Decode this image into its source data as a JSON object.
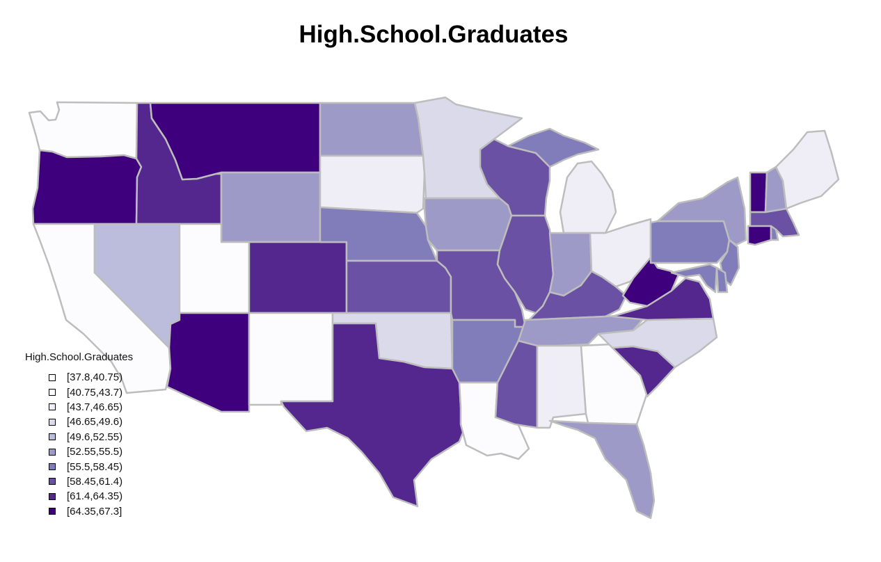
{
  "title": "High.School.Graduates",
  "legend": {
    "title": "High.School.Graduates",
    "bins": [
      {
        "label": "[37.8,40.75)",
        "color": "#fcfbfd"
      },
      {
        "label": "[40.75,43.7)",
        "color": "#fcfbfd"
      },
      {
        "label": "[43.7,46.65)",
        "color": "#efedf5"
      },
      {
        "label": "[46.65,49.6)",
        "color": "#dadaeb"
      },
      {
        "label": "[49.6,52.55)",
        "color": "#bcbddc"
      },
      {
        "label": "[52.55,55.5)",
        "color": "#9e9ac8"
      },
      {
        "label": "[55.5,58.45)",
        "color": "#807dba"
      },
      {
        "label": "[58.45,61.4)",
        "color": "#6a51a3"
      },
      {
        "label": "[61.4,64.35)",
        "color": "#54278f"
      },
      {
        "label": "[64.35,67.3]",
        "color": "#3f007d"
      }
    ]
  },
  "states": [
    {
      "name": "WA",
      "color": "#fcfbfd"
    },
    {
      "name": "OR",
      "color": "#3f007d"
    },
    {
      "name": "CA",
      "color": "#fcfbfd"
    },
    {
      "name": "ID",
      "color": "#54278f"
    },
    {
      "name": "NV",
      "color": "#bcbddc"
    },
    {
      "name": "MT",
      "color": "#3f007d"
    },
    {
      "name": "WY",
      "color": "#9e9ac8"
    },
    {
      "name": "UT",
      "color": "#fcfbfd"
    },
    {
      "name": "AZ",
      "color": "#3f007d"
    },
    {
      "name": "CO",
      "color": "#54278f"
    },
    {
      "name": "NM",
      "color": "#fcfbfd"
    },
    {
      "name": "ND",
      "color": "#9e9ac8"
    },
    {
      "name": "SD",
      "color": "#efedf5"
    },
    {
      "name": "NE",
      "color": "#807dba"
    },
    {
      "name": "KS",
      "color": "#6a51a3"
    },
    {
      "name": "OK",
      "color": "#dadaeb"
    },
    {
      "name": "TX",
      "color": "#54278f"
    },
    {
      "name": "MN",
      "color": "#dadaeb"
    },
    {
      "name": "IA",
      "color": "#9e9ac8"
    },
    {
      "name": "MO",
      "color": "#6a51a3"
    },
    {
      "name": "AR",
      "color": "#807dba"
    },
    {
      "name": "LA",
      "color": "#fcfbfd"
    },
    {
      "name": "WI",
      "color": "#6a51a3"
    },
    {
      "name": "MI-UP",
      "color": "#807dba"
    },
    {
      "name": "MI",
      "color": "#efedf5"
    },
    {
      "name": "IL",
      "color": "#6a51a3"
    },
    {
      "name": "IN",
      "color": "#9e9ac8"
    },
    {
      "name": "OH",
      "color": "#efedf5"
    },
    {
      "name": "KY",
      "color": "#6a51a3"
    },
    {
      "name": "TN",
      "color": "#9e9ac8"
    },
    {
      "name": "MS",
      "color": "#6a51a3"
    },
    {
      "name": "AL",
      "color": "#efedf5"
    },
    {
      "name": "GA",
      "color": "#fcfbfd"
    },
    {
      "name": "FL",
      "color": "#9e9ac8"
    },
    {
      "name": "SC",
      "color": "#54278f"
    },
    {
      "name": "NC",
      "color": "#dadaeb"
    },
    {
      "name": "VA",
      "color": "#54278f"
    },
    {
      "name": "WV",
      "color": "#3f007d"
    },
    {
      "name": "PA",
      "color": "#807dba"
    },
    {
      "name": "NY",
      "color": "#9e9ac8"
    },
    {
      "name": "NJ",
      "color": "#807dba"
    },
    {
      "name": "MD",
      "color": "#807dba"
    },
    {
      "name": "DE",
      "color": "#807dba"
    },
    {
      "name": "VT",
      "color": "#3f007d"
    },
    {
      "name": "NH",
      "color": "#9e9ac8"
    },
    {
      "name": "ME",
      "color": "#efedf5"
    },
    {
      "name": "MA",
      "color": "#6a51a3"
    },
    {
      "name": "CT",
      "color": "#3f007d"
    },
    {
      "name": "RI",
      "color": "#807dba"
    }
  ]
}
